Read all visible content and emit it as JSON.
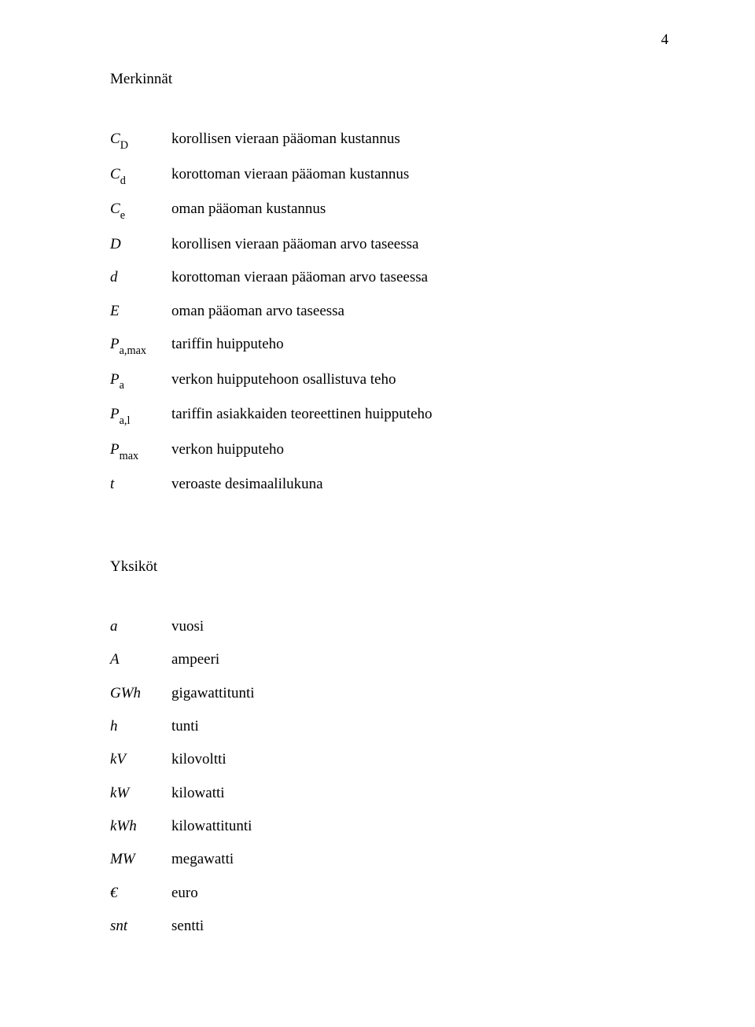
{
  "page_number": "4",
  "sections": {
    "merkinnat": {
      "title": "Merkinnät",
      "rows": [
        {
          "sym_base": "C",
          "sym_sub": "D",
          "desc": "korollisen vieraan pääoman kustannus"
        },
        {
          "sym_base": "C",
          "sym_sub": "d",
          "desc": "korottoman vieraan pääoman kustannus"
        },
        {
          "sym_base": "C",
          "sym_sub": "e",
          "desc": "oman pääoman kustannus"
        },
        {
          "sym_base": "D",
          "sym_sub": "",
          "desc": "korollisen vieraan pääoman arvo taseessa"
        },
        {
          "sym_base": "d",
          "sym_sub": "",
          "desc": "korottoman vieraan pääoman arvo taseessa"
        },
        {
          "sym_base": "E",
          "sym_sub": "",
          "desc": "oman pääoman arvo taseessa"
        },
        {
          "sym_base": "P",
          "sym_sub": "a,max",
          "desc": "tariffin huipputeho"
        },
        {
          "sym_base": "P",
          "sym_sub": "a",
          "desc": "verkon huipputehoon osallistuva teho"
        },
        {
          "sym_base": "P",
          "sym_sub": "a,l",
          "desc": "tariffin asiakkaiden teoreettinen huipputeho"
        },
        {
          "sym_base": "P",
          "sym_sub": "max",
          "desc": "verkon huipputeho"
        },
        {
          "sym_base": "t",
          "sym_sub": "",
          "desc": "veroaste desimaalilukuna"
        }
      ]
    },
    "yksikot": {
      "title": "Yksiköt",
      "rows": [
        {
          "sym_base": "a",
          "sym_sub": "",
          "desc": "vuosi"
        },
        {
          "sym_base": "A",
          "sym_sub": "",
          "desc": "ampeeri"
        },
        {
          "sym_base": "GWh",
          "sym_sub": "",
          "desc": "gigawattitunti"
        },
        {
          "sym_base": "h",
          "sym_sub": "",
          "desc": "tunti"
        },
        {
          "sym_base": "kV",
          "sym_sub": "",
          "desc": "kilovoltti"
        },
        {
          "sym_base": "kW",
          "sym_sub": "",
          "desc": "kilowatti"
        },
        {
          "sym_base": "kWh",
          "sym_sub": "",
          "desc": "kilowattitunti"
        },
        {
          "sym_base": "MW",
          "sym_sub": "",
          "desc": "megawatti"
        },
        {
          "sym_base": "€",
          "sym_sub": "",
          "desc": "euro"
        },
        {
          "sym_base": "snt",
          "sym_sub": "",
          "desc": "sentti"
        }
      ]
    }
  }
}
